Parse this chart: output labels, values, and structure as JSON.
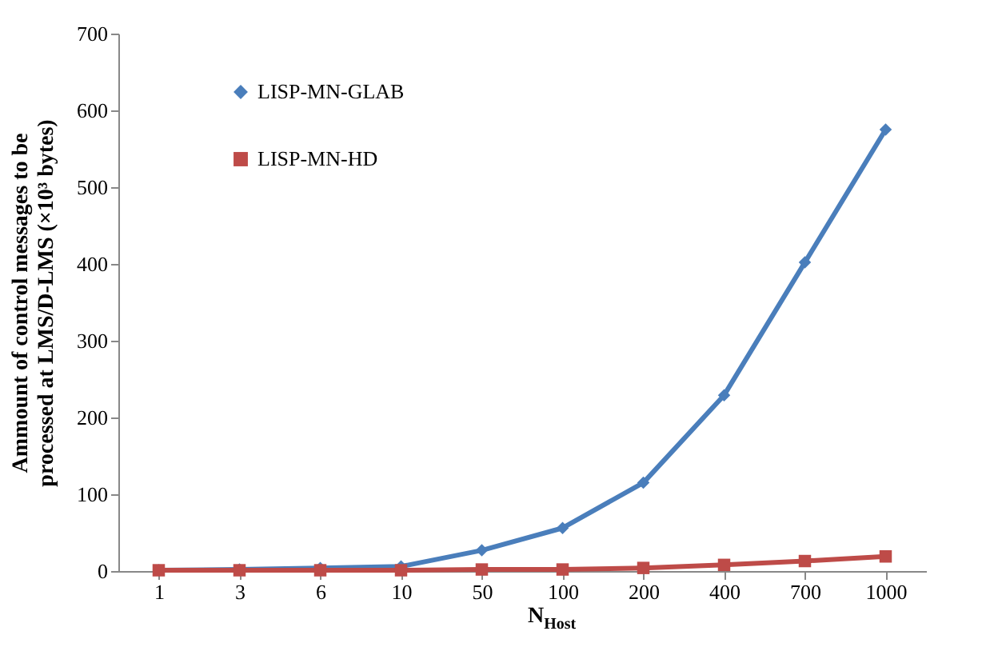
{
  "chart_data": {
    "type": "line",
    "xlabel": "N$_{Host}$",
    "ylabel": "Ammount of control messages to be processed at LMS/D-LMS (×10³ bytes)",
    "categories": [
      "1",
      "3",
      "6",
      "10",
      "50",
      "100",
      "200",
      "400",
      "700",
      "1000"
    ],
    "series": [
      {
        "name": "LISP-MN-GLAB",
        "color": "#4a7ebb",
        "marker": "diamond",
        "values": [
          1,
          2,
          4,
          6,
          27,
          56,
          115,
          229,
          402,
          575
        ]
      },
      {
        "name": "LISP-MN-HD",
        "color": "#be4b48",
        "marker": "square",
        "values": [
          1,
          1,
          1,
          1,
          2,
          2,
          4,
          8,
          13,
          19
        ]
      }
    ],
    "ylim": [
      0,
      700
    ],
    "yticks": [
      0,
      100,
      200,
      300,
      400,
      500,
      600,
      700
    ],
    "grid": false,
    "legend": "top left",
    "line_style": "solid"
  }
}
